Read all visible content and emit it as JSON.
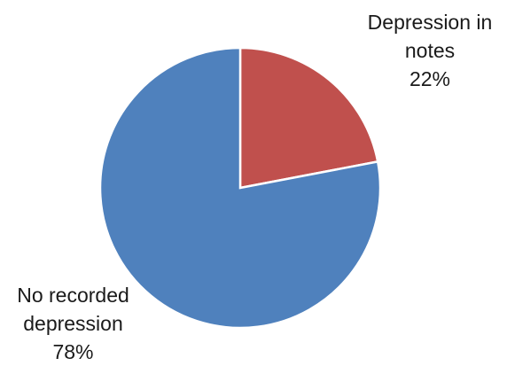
{
  "chart_data": {
    "type": "pie",
    "title": "",
    "slices": [
      {
        "label_lines": [
          "Depression in",
          "notes"
        ],
        "value": 22,
        "value_label": "22%",
        "color": "#c0504d"
      },
      {
        "label_lines": [
          "No recorded",
          "depression"
        ],
        "value": 78,
        "value_label": "78%",
        "color": "#4f81bd"
      }
    ],
    "start_angle_deg": 0,
    "direction": "clockwise",
    "slice_border_color": "#ffffff",
    "legend": "none"
  }
}
